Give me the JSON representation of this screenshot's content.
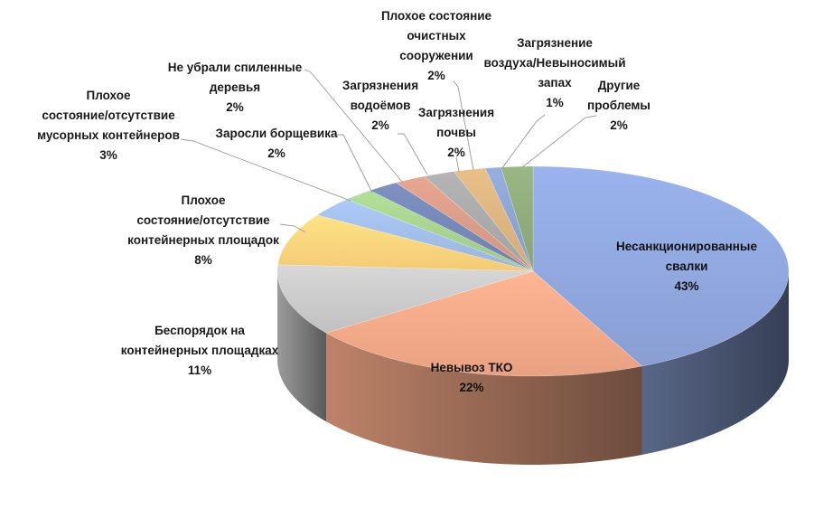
{
  "chart_data": {
    "type": "pie",
    "title": "",
    "slices": [
      {
        "label": [
          "Несанкционированные",
          "свалки"
        ],
        "pct_text": "43%",
        "value": 43,
        "color": "#8fa6dc"
      },
      {
        "label": [
          "Невывоз ТКО"
        ],
        "pct_text": "22%",
        "value": 22,
        "color": "#f2a887"
      },
      {
        "label": [
          "Беспорядок на",
          "контейнерных площадках"
        ],
        "pct_text": "11%",
        "value": 11,
        "color": "#c8c8c8"
      },
      {
        "label": [
          "Плохое",
          "состояние/отсутствие",
          "контейнерных площадок"
        ],
        "pct_text": "8%",
        "value": 8,
        "color": "#fdd27a"
      },
      {
        "label": [
          "Плохое",
          "состояние/отсутствие",
          "мусорных контейнеров"
        ],
        "pct_text": "3%",
        "value": 3,
        "color": "#9fbbe6"
      },
      {
        "label": [
          "Заросли борщевика"
        ],
        "pct_text": "2%",
        "value": 2,
        "color": "#a6cf8e"
      },
      {
        "label": [
          "Не убрали спиленные",
          "деревья"
        ],
        "pct_text": "2%",
        "value": 2,
        "color": "#7486b4"
      },
      {
        "label": [
          "Загрязнения",
          "водоёмов"
        ],
        "pct_text": "2%",
        "value": 2,
        "color": "#d79a86"
      },
      {
        "label": [
          "Загрязнения",
          "почвы"
        ],
        "pct_text": "2%",
        "value": 2,
        "color": "#a8a8a8"
      },
      {
        "label": [
          "Плохое состояние",
          "очистных",
          "сооружении"
        ],
        "pct_text": "2%",
        "value": 2,
        "color": "#d9b27e"
      },
      {
        "label": [
          "Загрязнение",
          "воздуха/Невыносимый",
          "запах"
        ],
        "pct_text": "1%",
        "value": 1,
        "color": "#8aa2cf"
      },
      {
        "label": [
          "Другие",
          "проблемы"
        ],
        "pct_text": "2%",
        "value": 2,
        "color": "#8ea97a"
      }
    ]
  }
}
